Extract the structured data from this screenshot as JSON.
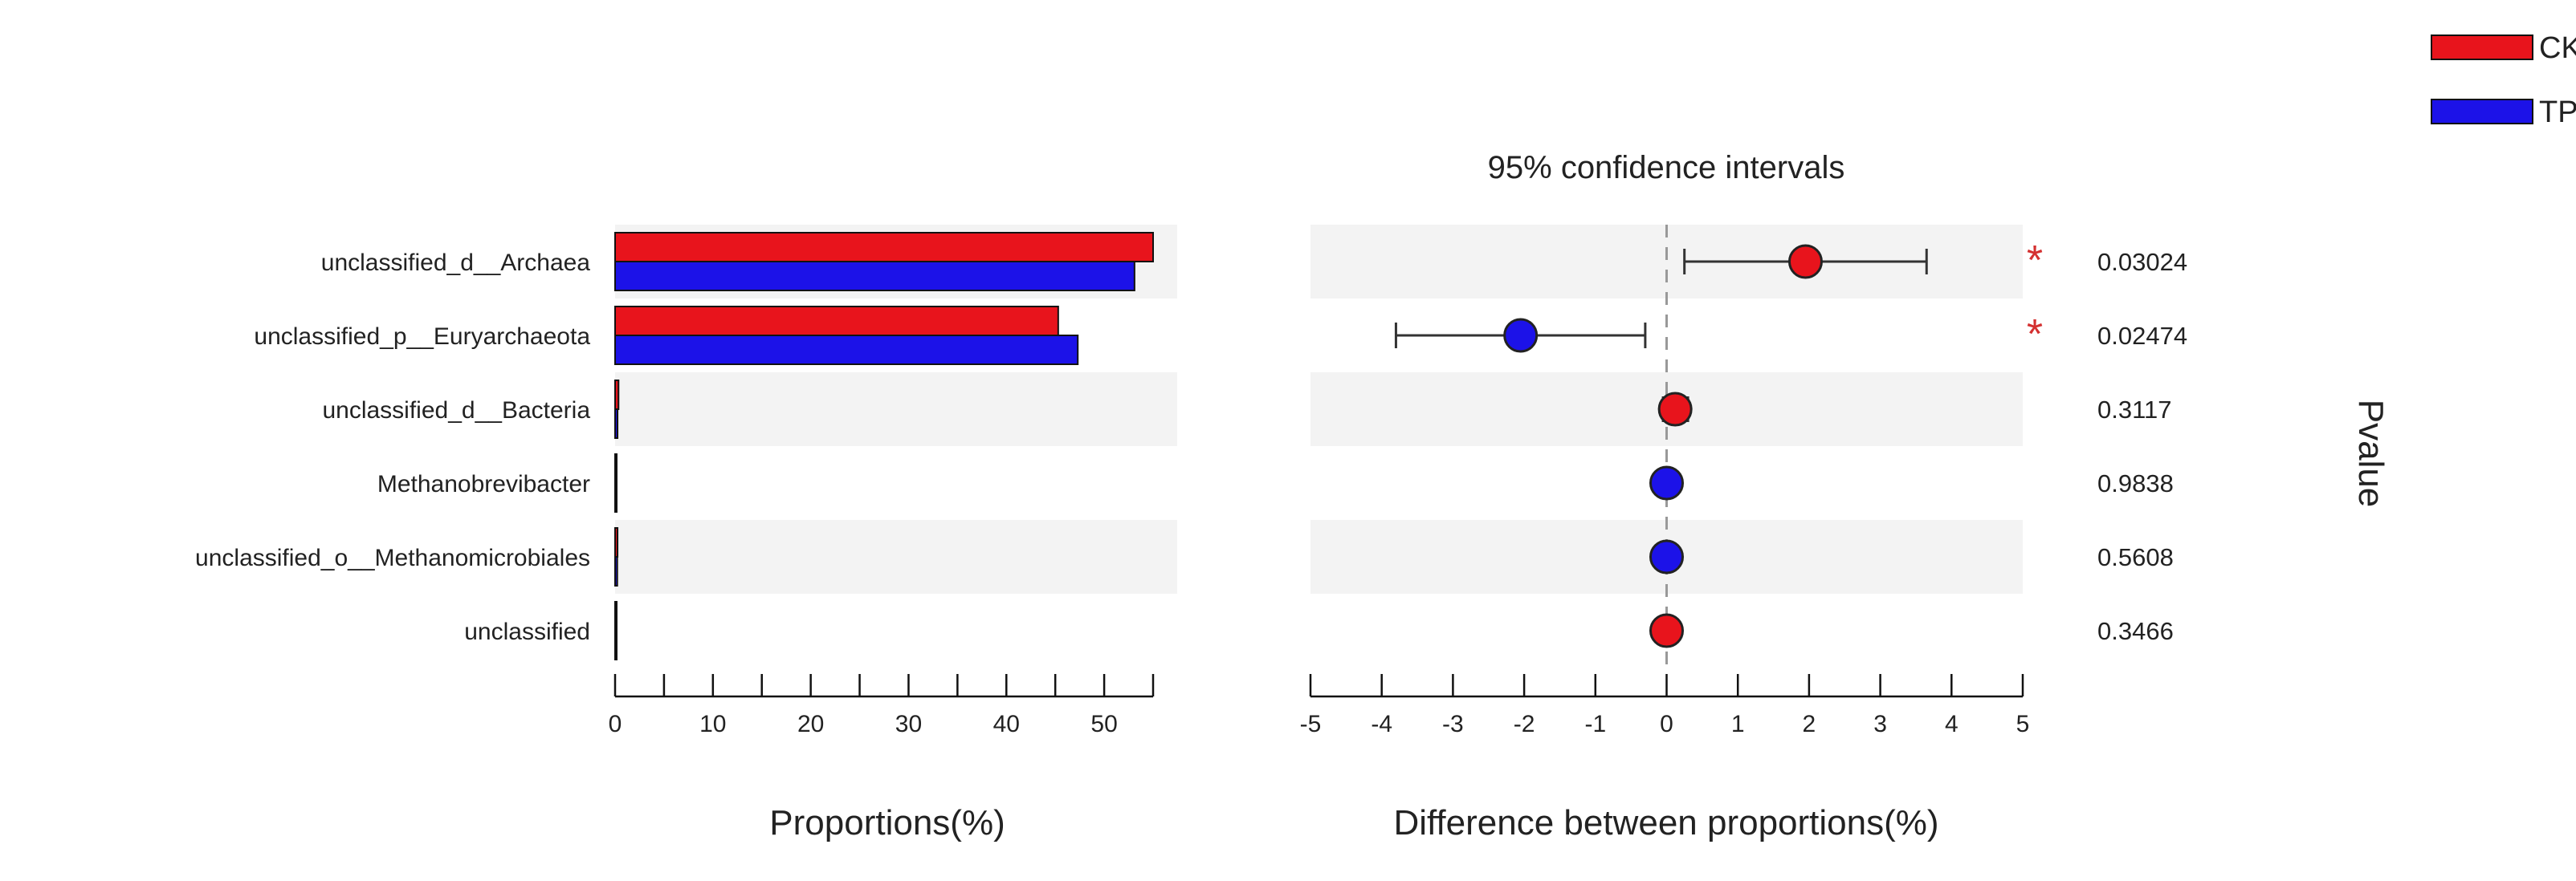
{
  "chart_data": {
    "type": "bar",
    "categories": [
      "unclassified_d__Archaea",
      "unclassified_p__Euryarchaeota",
      "unclassified_d__Bacteria",
      "Methanobrevibacter",
      "unclassified_o__Methanomicrobiales",
      "unclassified"
    ],
    "legend": {
      "position": "top-right",
      "items": [
        {
          "name": "CK",
          "color": "#e8141c"
        },
        {
          "name": "TP",
          "color": "#1c12e8"
        }
      ]
    },
    "proportions": {
      "xlabel": "Proportions(%)",
      "xlim": [
        0,
        55
      ],
      "xticks": [
        0,
        10,
        20,
        30,
        40,
        50
      ],
      "xtick_labels": [
        "0",
        "10",
        "20",
        "30",
        "40",
        "50"
      ],
      "series": [
        {
          "name": "CK",
          "color": "#e8141c",
          "values": [
            55.0,
            45.3,
            0.35,
            0.15,
            0.25,
            0.05
          ]
        },
        {
          "name": "TP",
          "color": "#1c12e8",
          "values": [
            53.1,
            47.3,
            0.25,
            0.15,
            0.22,
            0.05
          ]
        }
      ]
    },
    "difference": {
      "title": "95% confidence intervals",
      "xlabel": "Difference between proportions(%)",
      "xlim": [
        -5,
        5
      ],
      "xticks": [
        -5,
        -4,
        -3,
        -2,
        -1,
        0,
        1,
        2,
        3,
        4,
        5
      ],
      "xtick_labels": [
        "-5",
        "-4",
        "-3",
        "-2",
        "-1",
        "0",
        "1",
        "2",
        "3",
        "4",
        "5"
      ],
      "estimates": [
        1.95,
        -2.05,
        0.12,
        0.0,
        0.0,
        0.0
      ],
      "ci_low": [
        0.25,
        -3.8,
        -0.05,
        -0.02,
        -0.02,
        -0.02
      ],
      "ci_high": [
        3.65,
        -0.3,
        0.3,
        0.02,
        0.02,
        0.02
      ],
      "point_colors": [
        "#e8141c",
        "#1c12e8",
        "#e8141c",
        "#1c12e8",
        "#1c12e8",
        "#e8141c"
      ],
      "significance": [
        "*",
        "*",
        "",
        "",
        "",
        ""
      ]
    },
    "pvalues": {
      "label": "Pvalue",
      "values": [
        "0.03024",
        "0.02474",
        "0.3117",
        "0.9838",
        "0.5608",
        "0.3466"
      ]
    }
  }
}
